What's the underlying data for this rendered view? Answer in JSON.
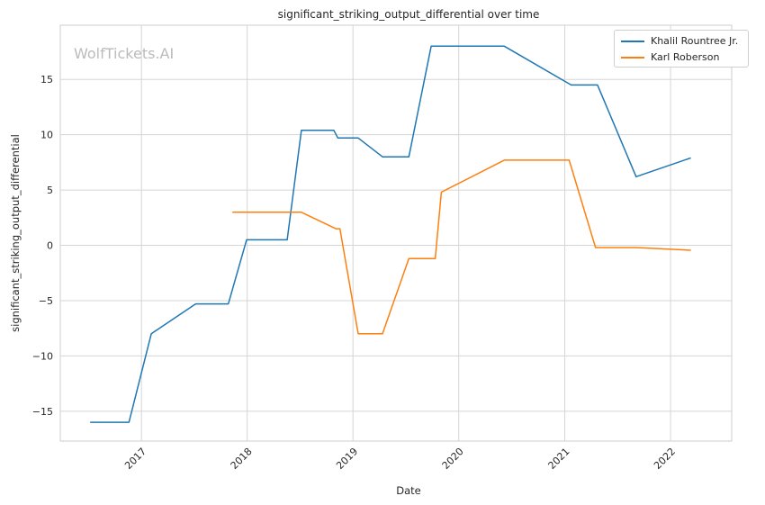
{
  "watermark": "WolfTickets.AI",
  "chart_data": {
    "type": "line",
    "title": "significant_striking_output_differential over time",
    "xlabel": "Date",
    "ylabel": "significant_striking_output_differential",
    "xlim": [
      "2016-03-27",
      "2022-07-31"
    ],
    "ylim": [
      -17.7,
      19.9
    ],
    "x_ticks": [
      "2017-01-01",
      "2018-01-01",
      "2019-01-01",
      "2020-01-01",
      "2021-01-01",
      "2022-01-01"
    ],
    "x_tick_labels": [
      "2017",
      "2018",
      "2019",
      "2020",
      "2021",
      "2022"
    ],
    "y_ticks": [
      -15,
      -10,
      -5,
      0,
      5,
      10,
      15
    ],
    "y_tick_labels": [
      "−15",
      "−10",
      "−5",
      "0",
      "5",
      "10",
      "15"
    ],
    "grid": true,
    "legend_position": "top-right",
    "series": [
      {
        "name": "Khalil Rountree Jr.",
        "color": "#1f77b4",
        "points": [
          [
            "2016-07-08",
            -16.0
          ],
          [
            "2016-11-19",
            -16.0
          ],
          [
            "2017-02-04",
            -8.0
          ],
          [
            "2017-07-07",
            -5.3
          ],
          [
            "2017-10-28",
            -5.3
          ],
          [
            "2017-12-30",
            0.5
          ],
          [
            "2018-05-19",
            0.5
          ],
          [
            "2018-07-07",
            10.4
          ],
          [
            "2018-10-27",
            10.4
          ],
          [
            "2018-11-10",
            9.7
          ],
          [
            "2019-01-19",
            9.7
          ],
          [
            "2019-04-13",
            8.0
          ],
          [
            "2019-07-13",
            8.0
          ],
          [
            "2019-09-28",
            18.0
          ],
          [
            "2020-06-06",
            18.0
          ],
          [
            "2021-01-23",
            14.5
          ],
          [
            "2021-04-24",
            14.5
          ],
          [
            "2021-09-04",
            6.2
          ],
          [
            "2022-03-12",
            7.9
          ]
        ]
      },
      {
        "name": "Karl Roberson",
        "color": "#ff7f0e",
        "points": [
          [
            "2017-11-11",
            3.0
          ],
          [
            "2018-07-06",
            3.0
          ],
          [
            "2018-11-03",
            1.5
          ],
          [
            "2018-11-17",
            1.5
          ],
          [
            "2019-01-19",
            -8.0
          ],
          [
            "2019-04-13",
            -8.0
          ],
          [
            "2019-07-13",
            -1.2
          ],
          [
            "2019-10-12",
            -1.2
          ],
          [
            "2019-11-02",
            4.8
          ],
          [
            "2020-06-06",
            7.7
          ],
          [
            "2021-01-16",
            7.7
          ],
          [
            "2021-04-17",
            -0.2
          ],
          [
            "2021-09-04",
            -0.2
          ],
          [
            "2022-03-12",
            -0.45
          ]
        ]
      }
    ]
  }
}
